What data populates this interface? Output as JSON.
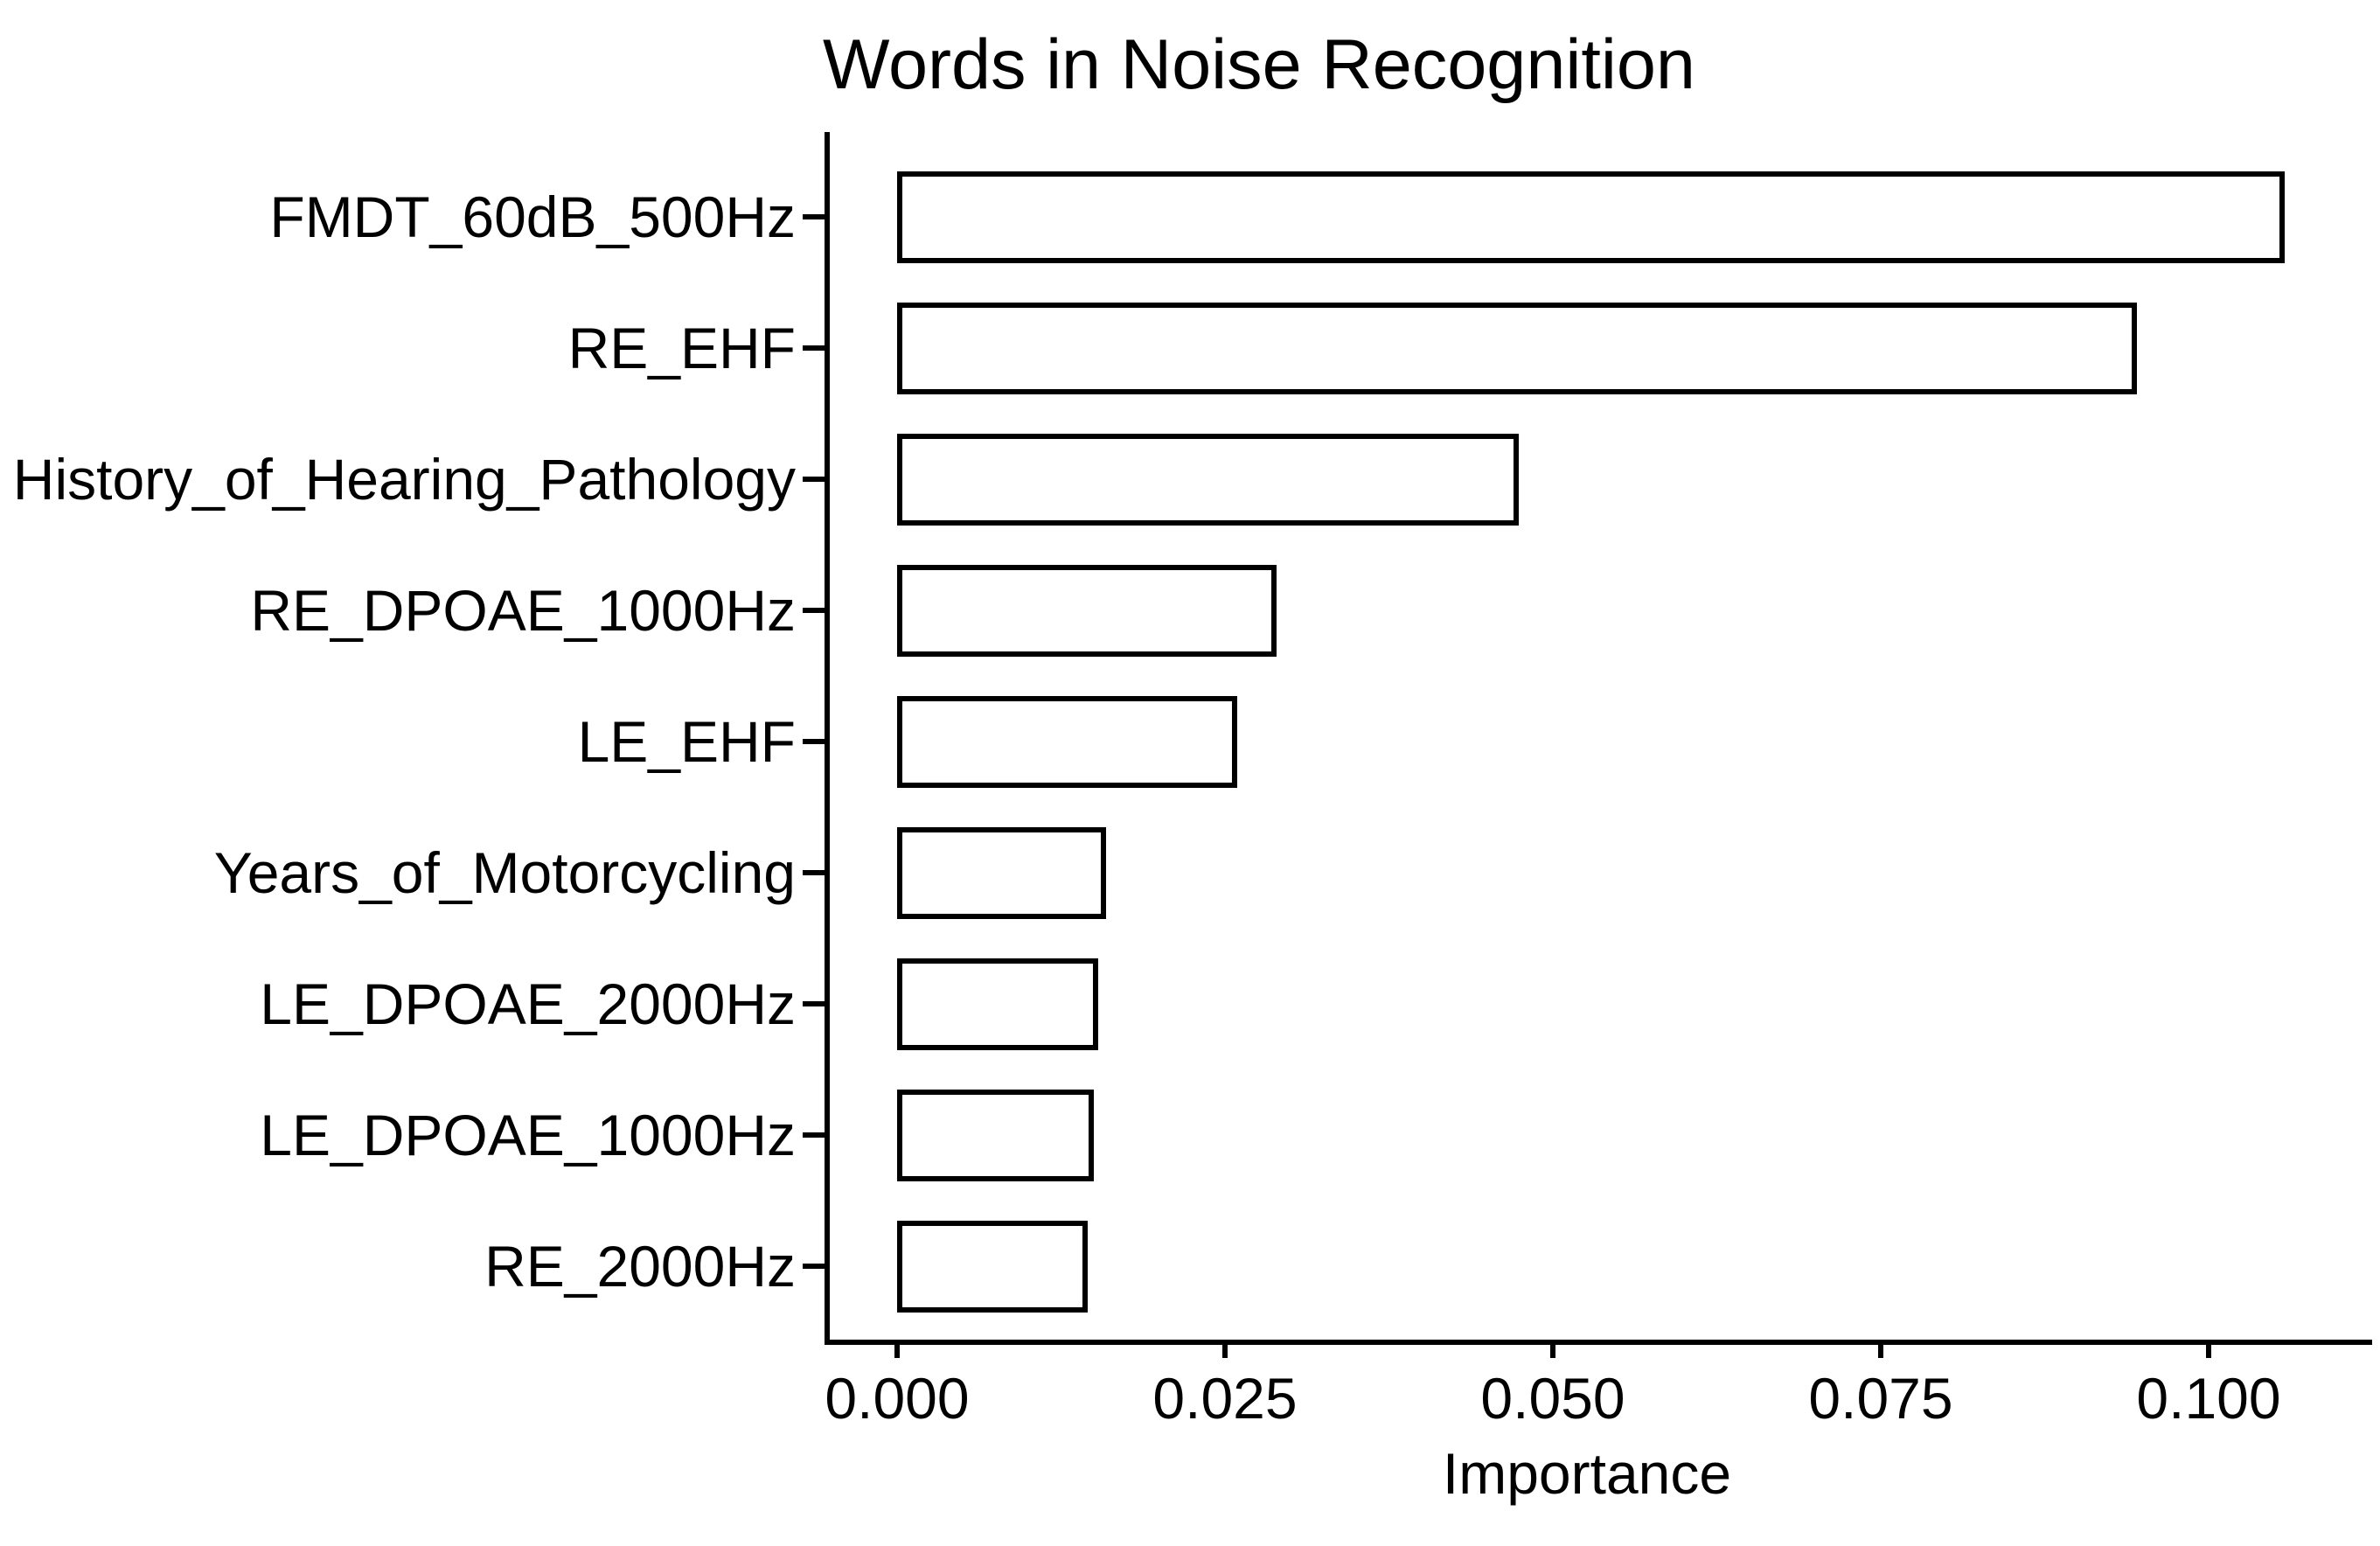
{
  "chart_data": {
    "type": "bar",
    "orientation": "horizontal",
    "title": "Words in Noise Recognition",
    "xlabel": "Importance",
    "ylabel": "",
    "categories": [
      "FMDT_60dB_500Hz",
      "RE_EHF",
      "History_of_Hearing_Pathology",
      "RE_DPOAE_1000Hz",
      "LE_EHF",
      "Years_of_Motorcycling",
      "LE_DPOAE_2000Hz",
      "LE_DPOAE_1000Hz",
      "RE_2000Hz"
    ],
    "values": [
      0.1058,
      0.0945,
      0.0474,
      0.0289,
      0.0259,
      0.0159,
      0.0153,
      0.015,
      0.0145
    ],
    "x_ticks": [
      "0.000",
      "0.025",
      "0.050",
      "0.075",
      "0.100"
    ],
    "x_tick_values": [
      0,
      0.025,
      0.05,
      0.075,
      0.1
    ],
    "xlim": [
      -0.0053,
      0.112
    ],
    "grid": false,
    "legend": "none",
    "bar_fill": "#ffffff",
    "bar_stroke": "#000000",
    "axis_color": "#000000",
    "text_color": "#000000",
    "background": "#ffffff"
  }
}
